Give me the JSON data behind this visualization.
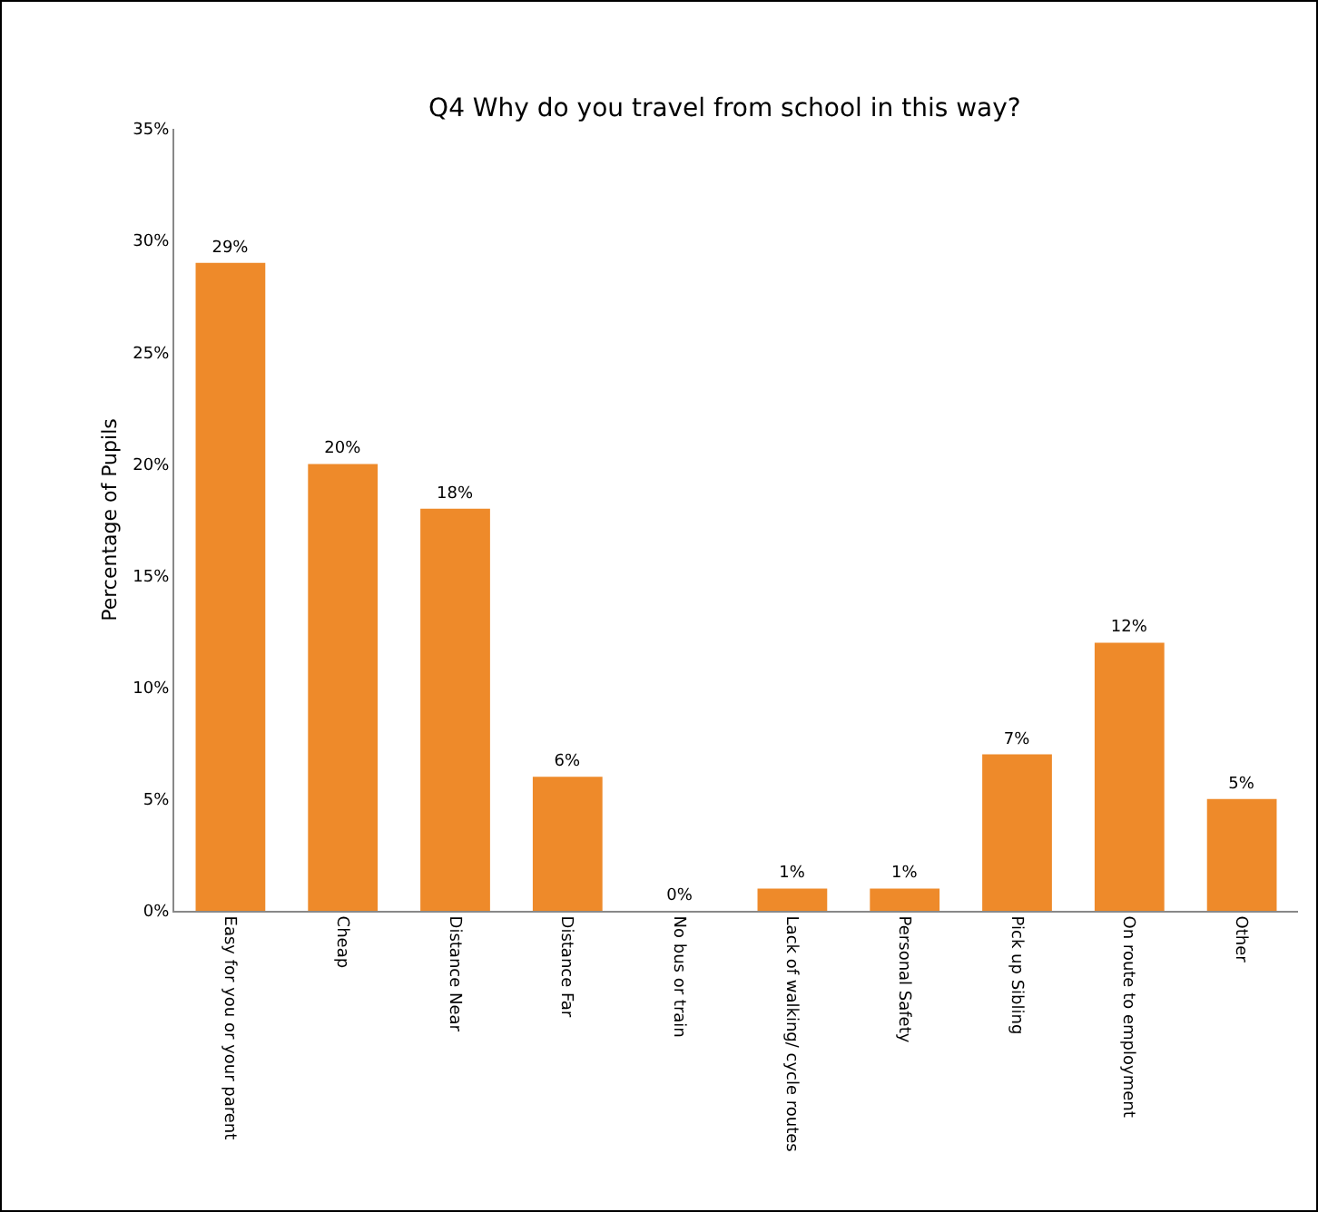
{
  "chart_data": {
    "type": "bar",
    "title": "Q4 Why do you travel from school in this way?",
    "ylabel": "Percentage of Pupils",
    "categories": [
      "Easy for you or your parent",
      "Cheap",
      "Distance Near",
      "Distance Far",
      "No bus or train",
      "Lack of walking/ cycle routes",
      "Personal Safety",
      "Pick up Sibling",
      "On route to employment",
      "Other"
    ],
    "values": [
      29,
      20,
      18,
      6,
      0,
      1,
      1,
      7,
      12,
      5
    ],
    "value_labels": [
      "29%",
      "20%",
      "18%",
      "6%",
      "0%",
      "1%",
      "1%",
      "7%",
      "12%",
      "5%"
    ],
    "color": "#ee8a2a",
    "ylim": [
      0,
      35
    ],
    "yticks": [
      {
        "value": 0,
        "label": "0%"
      },
      {
        "value": 5,
        "label": "5%"
      },
      {
        "value": 10,
        "label": "10%"
      },
      {
        "value": 15,
        "label": "15%"
      },
      {
        "value": 20,
        "label": "20%"
      },
      {
        "value": 25,
        "label": "25%"
      },
      {
        "value": 30,
        "label": "30%"
      },
      {
        "value": 35,
        "label": "35%"
      }
    ],
    "grid": false,
    "legend": false
  }
}
